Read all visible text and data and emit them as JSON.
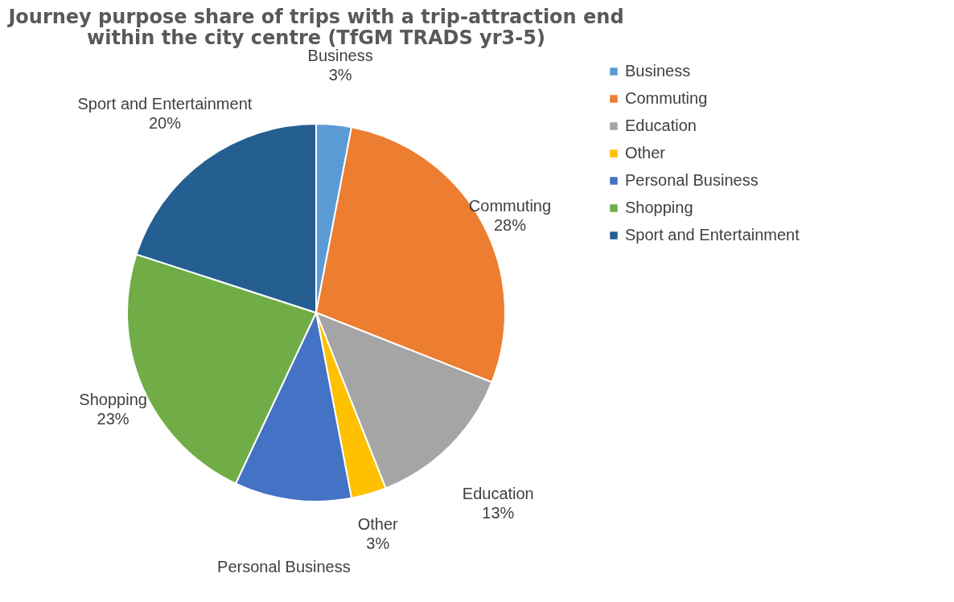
{
  "chart_data": {
    "type": "pie",
    "title": "Journey purpose share of trips with a trip-attraction end within the city centre (TfGM TRADS yr3-5)",
    "categories": [
      "Business",
      "Commuting",
      "Education",
      "Other",
      "Personal Business",
      "Shopping",
      "Sport and Entertainment"
    ],
    "values": [
      3,
      28,
      13,
      3,
      10,
      23,
      20
    ],
    "colors": [
      "#5b9bd5",
      "#ed7d31",
      "#a5a5a5",
      "#ffc000",
      "#4472c4",
      "#70ad47",
      "#255e91"
    ],
    "value_labels": [
      "3%",
      "28%",
      "13%",
      "3%",
      null,
      "23%",
      "20%"
    ],
    "legend": "right"
  }
}
